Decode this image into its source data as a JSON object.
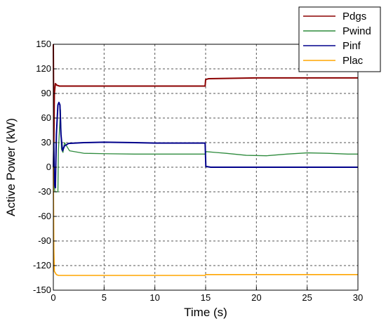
{
  "chart_data": {
    "type": "line",
    "xlabel": "Time (s)",
    "ylabel": "Active Power (kW)",
    "xlim": [
      0,
      30
    ],
    "ylim": [
      -150,
      150
    ],
    "xticks": [
      0,
      5,
      10,
      15,
      20,
      25,
      30
    ],
    "yticks": [
      150,
      120,
      90,
      60,
      30,
      0,
      -30,
      -60,
      -90,
      -120,
      -150
    ],
    "grid": "dashed",
    "legend_position": "top-right",
    "series": [
      {
        "name": "Pdgs",
        "color": "#8b0000",
        "x": [
          0,
          0.05,
          0.1,
          0.2,
          0.35,
          0.6,
          1,
          5,
          10,
          14.95,
          15,
          15.3,
          20,
          25,
          30
        ],
        "y": [
          150,
          30,
          90,
          102,
          100,
          99,
          99,
          99,
          99,
          99,
          107,
          108,
          109,
          109,
          109
        ]
      },
      {
        "name": "Pwind",
        "color": "#2e8b3d",
        "x": [
          0,
          0.05,
          0.15,
          0.25,
          0.45,
          0.5,
          0.7,
          0.8,
          0.95,
          1.1,
          1.6,
          3,
          5,
          8,
          10,
          14.95,
          15.05,
          16,
          17,
          19,
          21,
          23,
          25,
          27,
          29,
          30
        ],
        "y": [
          0,
          -15,
          -30,
          -30,
          -30,
          20,
          70,
          22,
          18,
          30,
          20,
          17,
          16.5,
          16,
          16,
          16,
          19,
          18,
          17,
          14.5,
          14,
          16,
          17.5,
          17,
          16,
          16
        ]
      },
      {
        "name": "Pinf",
        "color": "#00008b",
        "x": [
          0,
          0.05,
          0.1,
          0.2,
          0.3,
          0.45,
          0.55,
          0.65,
          0.75,
          0.9,
          1.1,
          1.5,
          3,
          5,
          8,
          10,
          12,
          14.95,
          15.02,
          15.5,
          20,
          25,
          30
        ],
        "y": [
          0,
          30,
          -20,
          -25,
          40,
          76,
          79,
          76,
          40,
          20,
          26,
          29,
          30,
          30.5,
          30,
          29.5,
          29.5,
          29.5,
          1,
          0,
          0,
          0,
          0
        ]
      },
      {
        "name": "Plac",
        "color": "#ffa500",
        "x": [
          0,
          0.05,
          0.1,
          0.3,
          0.5,
          1,
          5,
          10,
          14.95,
          15,
          20,
          25,
          30
        ],
        "y": [
          0,
          -100,
          -127,
          -131,
          -132,
          -132,
          -132,
          -132,
          -132,
          -131,
          -131,
          -131,
          -131
        ]
      }
    ]
  }
}
